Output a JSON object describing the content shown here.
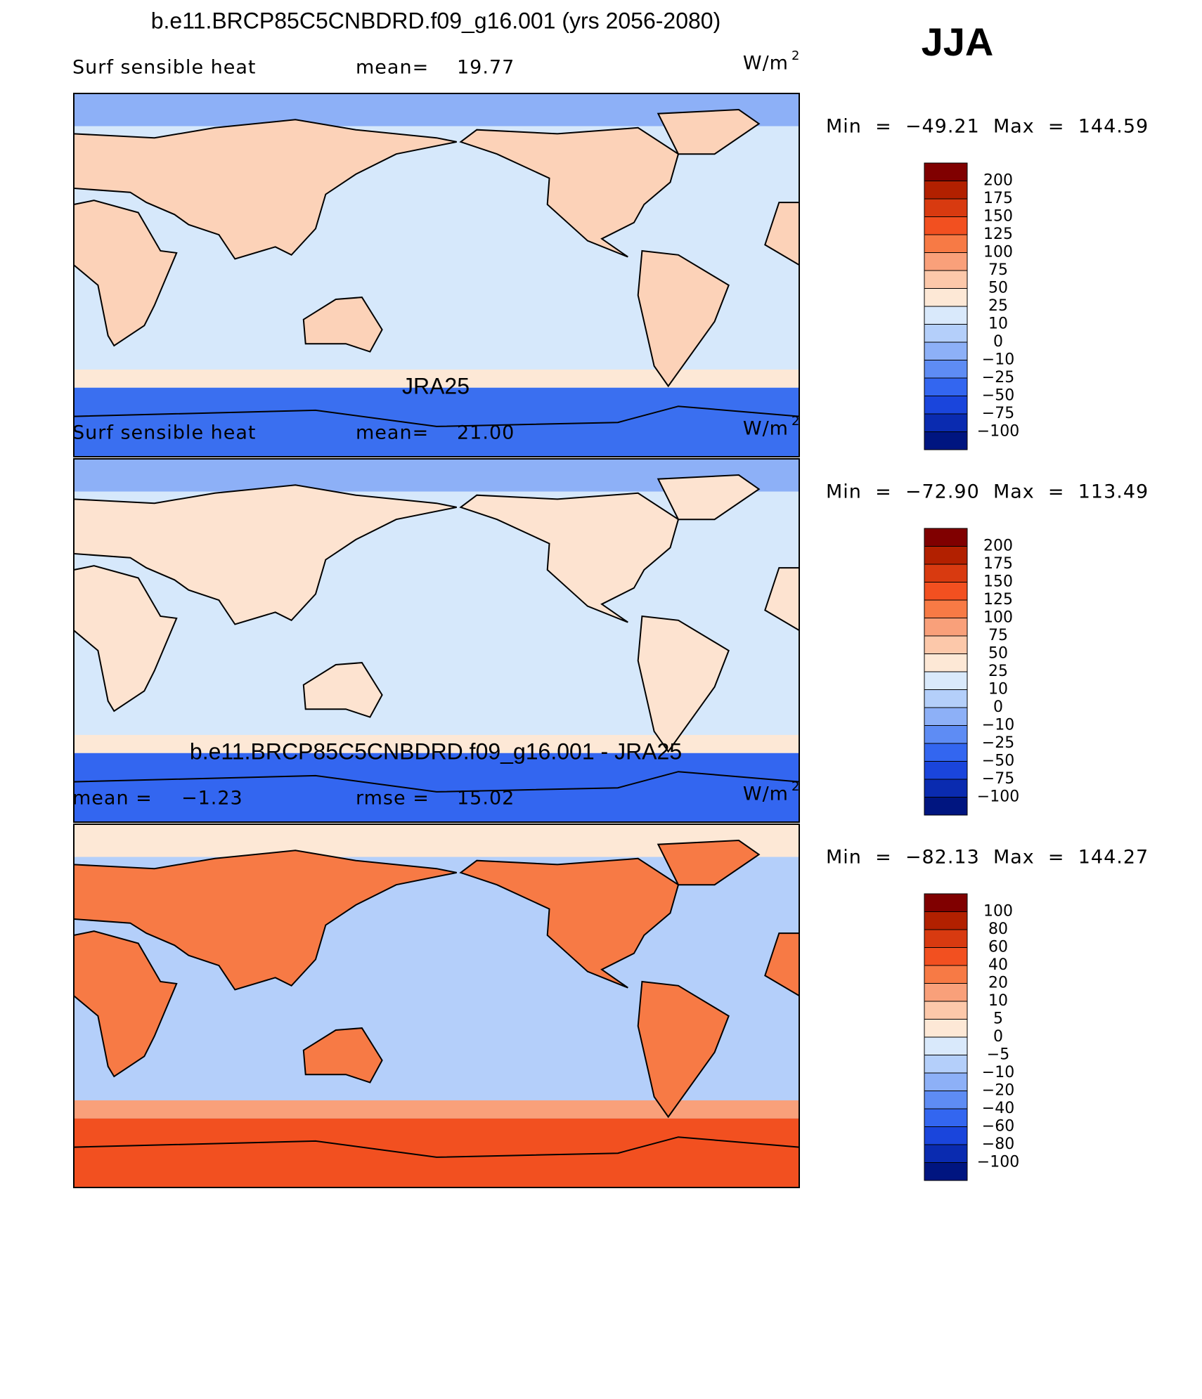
{
  "header": {
    "season": "JJA"
  },
  "panels": [
    {
      "title": "b.e11.BRCP85C5CNBDRD.f09_g16.001 (yrs 2056-2080)",
      "left_label": "Surf sensible heat",
      "stat_label": "mean=",
      "stat_value": "19.77",
      "units": "W/m",
      "units_sup": "2",
      "min_max": "Min  =  −49.21  Max  =  144.59",
      "colorbar": {
        "labels": [
          "200",
          "175",
          "150",
          "125",
          "100",
          "75",
          "50",
          "25",
          "10",
          "0",
          "−10",
          "−25",
          "−50",
          "−75",
          "−100"
        ],
        "colors": [
          "#800000",
          "#b22000",
          "#d83a10",
          "#f25020",
          "#f77a45",
          "#f9a07a",
          "#fcc8aa",
          "#fde8d6",
          "#d9e9fb",
          "#b4cffa",
          "#8db0f7",
          "#5e8cf4",
          "#3366f0",
          "#1a45dc",
          "#0a2bb0",
          "#001580"
        ]
      }
    },
    {
      "title": "JRA25",
      "left_label": "Surf sensible heat",
      "stat_label": "mean=",
      "stat_value": "21.00",
      "units": "W/m",
      "units_sup": "2",
      "min_max": "Min  =  −72.90  Max  =  113.49",
      "colorbar": {
        "labels": [
          "200",
          "175",
          "150",
          "125",
          "100",
          "75",
          "50",
          "25",
          "10",
          "0",
          "−10",
          "−25",
          "−50",
          "−75",
          "−100"
        ],
        "colors": [
          "#800000",
          "#b22000",
          "#d83a10",
          "#f25020",
          "#f77a45",
          "#f9a07a",
          "#fcc8aa",
          "#fde8d6",
          "#d9e9fb",
          "#b4cffa",
          "#8db0f7",
          "#5e8cf4",
          "#3366f0",
          "#1a45dc",
          "#0a2bb0",
          "#001580"
        ]
      }
    },
    {
      "title": "b.e11.BRCP85C5CNBDRD.f09_g16.001 - JRA25",
      "left_label": "mean =",
      "left_value": "−1.23",
      "stat_label": "rmse =",
      "stat_value": "15.02",
      "units": "W/m",
      "units_sup": "2",
      "min_max": "Min  =  −82.13  Max  =  144.27",
      "colorbar": {
        "labels": [
          "100",
          "80",
          "60",
          "40",
          "20",
          "10",
          "5",
          "0",
          "−5",
          "−10",
          "−20",
          "−40",
          "−60",
          "−80",
          "−100"
        ],
        "colors": [
          "#800000",
          "#b22000",
          "#d83a10",
          "#f25020",
          "#f77a45",
          "#f9a07a",
          "#fcc8aa",
          "#fde8d6",
          "#d9e9fb",
          "#b4cffa",
          "#8db0f7",
          "#5e8cf4",
          "#3366f0",
          "#1a45dc",
          "#0a2bb0",
          "#001580"
        ]
      }
    }
  ]
}
